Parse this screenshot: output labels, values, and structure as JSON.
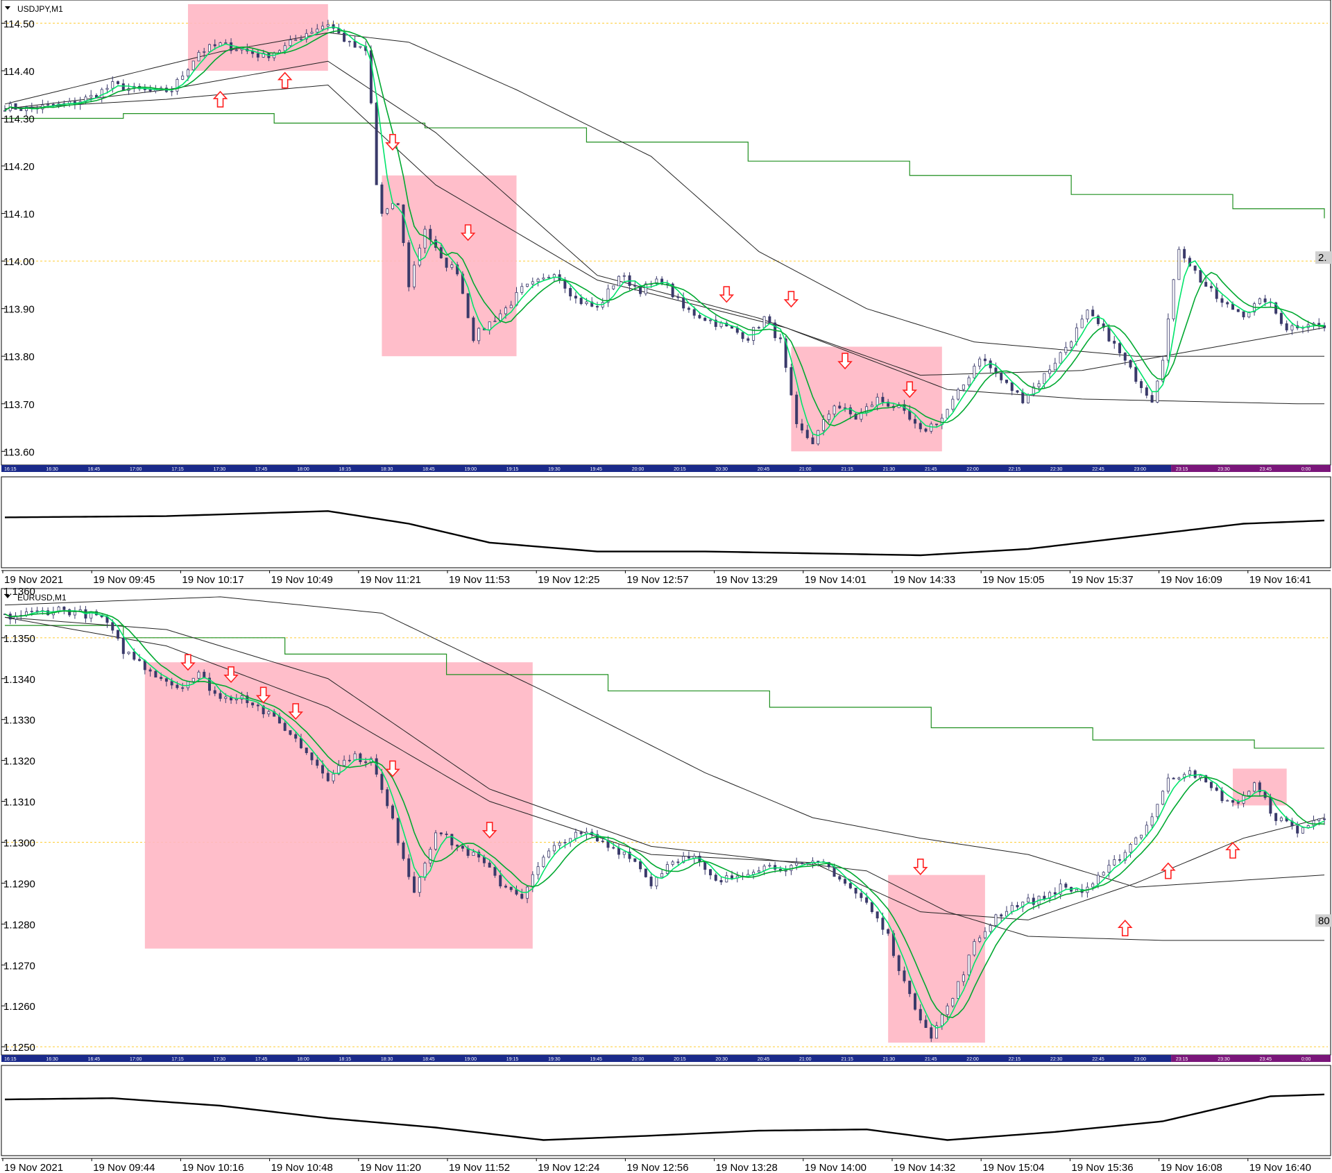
{
  "chart_data": [
    {
      "type": "candlestick",
      "symbol_label": "USDJPY,M1",
      "price_ticks": [
        "114.50",
        "114.40",
        "114.30",
        "114.20",
        "114.10",
        "114.00",
        "113.90",
        "113.80",
        "113.70",
        "113.60"
      ],
      "price_range": [
        113.58,
        114.54
      ],
      "right_badge": "2.",
      "inner_time_labels": [
        "16:15",
        "16:30",
        "16:45",
        "17:00",
        "17:15",
        "17:30",
        "17:45",
        "18:00",
        "18:15",
        "18:30",
        "18:45",
        "19:00",
        "19:15",
        "19:30",
        "19:45",
        "20:00",
        "20:15",
        "20:30",
        "20:45",
        "21:00",
        "21:15",
        "21:30",
        "21:45",
        "22:00",
        "22:15",
        "22:30",
        "22:45",
        "23:00",
        "23:15",
        "23:30",
        "23:45",
        "0:00"
      ],
      "time_axis": [
        "19 Nov 2021",
        "19 Nov 09:45",
        "19 Nov 10:17",
        "19 Nov 10:49",
        "19 Nov 11:21",
        "19 Nov 11:53",
        "19 Nov 12:25",
        "19 Nov 12:57",
        "19 Nov 13:29",
        "19 Nov 14:01",
        "19 Nov 14:33",
        "19 Nov 15:05",
        "19 Nov 15:37",
        "19 Nov 16:09",
        "19 Nov 16:41"
      ],
      "close_path": [
        [
          0,
          114.325
        ],
        [
          4,
          114.32
        ],
        [
          8,
          114.325
        ],
        [
          12,
          114.33
        ],
        [
          16,
          114.345
        ],
        [
          20,
          114.37
        ],
        [
          24,
          114.36
        ],
        [
          28,
          114.355
        ],
        [
          31,
          114.36
        ],
        [
          36,
          114.44
        ],
        [
          40,
          114.455
        ],
        [
          44,
          114.445
        ],
        [
          48,
          114.43
        ],
        [
          52,
          114.45
        ],
        [
          56,
          114.48
        ],
        [
          60,
          114.5
        ],
        [
          64,
          114.455
        ],
        [
          67,
          114.44
        ],
        [
          68,
          114.33
        ],
        [
          69,
          114.16
        ],
        [
          70,
          114.1
        ],
        [
          73,
          114.12
        ],
        [
          75,
          113.95
        ],
        [
          78,
          114.07
        ],
        [
          81,
          114.0
        ],
        [
          84,
          113.98
        ],
        [
          87,
          113.84
        ],
        [
          89,
          113.86
        ],
        [
          93,
          113.9
        ],
        [
          96,
          113.94
        ],
        [
          100,
          113.96
        ],
        [
          102,
          113.98
        ],
        [
          106,
          113.92
        ],
        [
          110,
          113.9
        ],
        [
          114,
          113.97
        ],
        [
          118,
          113.94
        ],
        [
          122,
          113.96
        ],
        [
          126,
          113.9
        ],
        [
          130,
          113.88
        ],
        [
          134,
          113.86
        ],
        [
          138,
          113.84
        ],
        [
          141,
          113.88
        ],
        [
          144,
          113.83
        ],
        [
          147,
          113.65
        ],
        [
          150,
          113.62
        ],
        [
          154,
          113.7
        ],
        [
          158,
          113.67
        ],
        [
          162,
          113.71
        ],
        [
          166,
          113.69
        ],
        [
          170,
          113.64
        ],
        [
          174,
          113.67
        ],
        [
          178,
          113.74
        ],
        [
          181,
          113.8
        ],
        [
          185,
          113.75
        ],
        [
          189,
          113.71
        ],
        [
          193,
          113.76
        ],
        [
          197,
          113.82
        ],
        [
          201,
          113.89
        ],
        [
          205,
          113.84
        ],
        [
          209,
          113.77
        ],
        [
          213,
          113.71
        ],
        [
          215,
          113.8
        ],
        [
          218,
          114.03
        ],
        [
          222,
          113.96
        ],
        [
          226,
          113.91
        ],
        [
          230,
          113.89
        ],
        [
          234,
          113.92
        ],
        [
          238,
          113.86
        ],
        [
          242,
          113.87
        ],
        [
          245,
          113.86
        ]
      ],
      "sma_path": [
        [
          0,
          114.33
        ],
        [
          20,
          114.36
        ],
        [
          40,
          114.41
        ],
        [
          60,
          114.47
        ],
        [
          70,
          114.3
        ],
        [
          80,
          114.05
        ],
        [
          90,
          113.92
        ],
        [
          100,
          113.95
        ],
        [
          120,
          113.93
        ],
        [
          140,
          113.86
        ],
        [
          150,
          113.72
        ],
        [
          165,
          113.68
        ],
        [
          178,
          113.72
        ],
        [
          200,
          113.83
        ],
        [
          215,
          113.78
        ],
        [
          230,
          113.9
        ],
        [
          245,
          113.88
        ]
      ],
      "ma_slow_1": [
        [
          0,
          114.32
        ],
        [
          30,
          114.36
        ],
        [
          60,
          114.42
        ],
        [
          80,
          114.27
        ],
        [
          110,
          113.97
        ],
        [
          140,
          113.88
        ],
        [
          170,
          113.76
        ],
        [
          200,
          113.77
        ],
        [
          245,
          113.86
        ]
      ],
      "ma_slow_2": [
        [
          0,
          114.32
        ],
        [
          30,
          114.34
        ],
        [
          60,
          114.37
        ],
        [
          80,
          114.16
        ],
        [
          110,
          113.96
        ],
        [
          145,
          113.86
        ],
        [
          175,
          113.73
        ],
        [
          200,
          113.71
        ],
        [
          240,
          113.7
        ]
      ],
      "ma_slow_3": [
        [
          0,
          114.33
        ],
        [
          40,
          114.44
        ],
        [
          60,
          114.48
        ],
        [
          75,
          114.46
        ],
        [
          95,
          114.36
        ],
        [
          120,
          114.22
        ],
        [
          140,
          114.02
        ],
        [
          160,
          113.9
        ],
        [
          180,
          113.83
        ],
        [
          210,
          113.8
        ],
        [
          245,
          113.8
        ]
      ],
      "step_levels": [
        [
          0,
          114.3
        ],
        [
          22,
          114.31
        ],
        [
          50,
          114.29
        ],
        [
          78,
          114.28
        ],
        [
          108,
          114.25
        ],
        [
          138,
          114.21
        ],
        [
          168,
          114.18
        ],
        [
          198,
          114.14
        ],
        [
          228,
          114.11
        ],
        [
          245,
          114.09
        ]
      ],
      "shade_boxes": [
        [
          34,
          60,
          114.54,
          114.4
        ],
        [
          70,
          95,
          114.18,
          113.8
        ],
        [
          146,
          174,
          113.82,
          113.6
        ]
      ],
      "arrows_up": [
        [
          40,
          114.34
        ],
        [
          52,
          114.38
        ]
      ],
      "arrows_down": [
        [
          72,
          114.25
        ],
        [
          86,
          114.06
        ],
        [
          134,
          113.93
        ],
        [
          146,
          113.92
        ],
        [
          156,
          113.79
        ],
        [
          168,
          113.73
        ]
      ],
      "ticks_label": [
        "time"
      ]
    },
    {
      "type": "candlestick",
      "symbol_label": "EURUSD,M1",
      "price_ticks": [
        "1.1350",
        "1.1340",
        "1.1330",
        "1.1320",
        "1.1310",
        "1.1300",
        "1.1290",
        "1.1280",
        "1.1270",
        "1.1260",
        "1.1250"
      ],
      "price_range": [
        1.1249,
        1.1361
      ],
      "top_cut_label": "1.1360",
      "right_badge": "80",
      "inner_time_labels": [
        "16:15",
        "16:30",
        "16:45",
        "17:00",
        "17:15",
        "17:30",
        "17:45",
        "18:00",
        "18:15",
        "18:30",
        "18:45",
        "19:00",
        "19:15",
        "19:30",
        "19:45",
        "20:00",
        "20:15",
        "20:30",
        "20:45",
        "21:00",
        "21:15",
        "21:30",
        "21:45",
        "22:00",
        "22:15",
        "22:30",
        "22:45",
        "23:00",
        "23:15",
        "23:30",
        "23:45",
        "0:00"
      ],
      "time_axis": [
        "19 Nov 2021",
        "19 Nov 09:44",
        "19 Nov 10:16",
        "19 Nov 10:48",
        "19 Nov 11:20",
        "19 Nov 11:52",
        "19 Nov 12:24",
        "19 Nov 12:56",
        "19 Nov 13:28",
        "19 Nov 14:00",
        "19 Nov 14:32",
        "19 Nov 15:04",
        "19 Nov 15:36",
        "19 Nov 16:08",
        "19 Nov 16:40"
      ],
      "close_path": [
        [
          0,
          1.1355
        ],
        [
          10,
          1.1357
        ],
        [
          18,
          1.1355
        ],
        [
          22,
          1.1347
        ],
        [
          27,
          1.1342
        ],
        [
          32,
          1.1338
        ],
        [
          36,
          1.1341
        ],
        [
          40,
          1.1335
        ],
        [
          44,
          1.1336
        ],
        [
          48,
          1.1332
        ],
        [
          52,
          1.1328
        ],
        [
          56,
          1.1322
        ],
        [
          60,
          1.1316
        ],
        [
          64,
          1.1321
        ],
        [
          68,
          1.132
        ],
        [
          72,
          1.1305
        ],
        [
          76,
          1.1288
        ],
        [
          80,
          1.1303
        ],
        [
          84,
          1.1299
        ],
        [
          88,
          1.1296
        ],
        [
          92,
          1.129
        ],
        [
          96,
          1.1287
        ],
        [
          100,
          1.1296
        ],
        [
          104,
          1.1301
        ],
        [
          108,
          1.1302
        ],
        [
          112,
          1.1299
        ],
        [
          116,
          1.1297
        ],
        [
          120,
          1.129
        ],
        [
          124,
          1.1296
        ],
        [
          128,
          1.1296
        ],
        [
          132,
          1.129
        ],
        [
          136,
          1.1292
        ],
        [
          140,
          1.1294
        ],
        [
          144,
          1.1294
        ],
        [
          148,
          1.1294
        ],
        [
          152,
          1.1295
        ],
        [
          156,
          1.129
        ],
        [
          160,
          1.1285
        ],
        [
          164,
          1.1277
        ],
        [
          168,
          1.1262
        ],
        [
          172,
          1.1253
        ],
        [
          176,
          1.1262
        ],
        [
          180,
          1.1275
        ],
        [
          184,
          1.1282
        ],
        [
          188,
          1.1285
        ],
        [
          192,
          1.1286
        ],
        [
          196,
          1.1289
        ],
        [
          200,
          1.1288
        ],
        [
          204,
          1.1292
        ],
        [
          208,
          1.1298
        ],
        [
          212,
          1.1304
        ],
        [
          216,
          1.1315
        ],
        [
          220,
          1.1318
        ],
        [
          224,
          1.1313
        ],
        [
          228,
          1.1309
        ],
        [
          232,
          1.1314
        ],
        [
          236,
          1.1306
        ],
        [
          240,
          1.1303
        ],
        [
          245,
          1.1306
        ]
      ],
      "sma_path": [
        [
          0,
          1.1355
        ],
        [
          18,
          1.1355
        ],
        [
          24,
          1.1345
        ],
        [
          40,
          1.1338
        ],
        [
          60,
          1.1319
        ],
        [
          72,
          1.1308
        ],
        [
          78,
          1.1296
        ],
        [
          90,
          1.1298
        ],
        [
          100,
          1.1294
        ],
        [
          110,
          1.1299
        ],
        [
          130,
          1.1293
        ],
        [
          150,
          1.1295
        ],
        [
          160,
          1.1288
        ],
        [
          172,
          1.1262
        ],
        [
          180,
          1.1268
        ],
        [
          196,
          1.1286
        ],
        [
          208,
          1.1293
        ],
        [
          220,
          1.1309
        ],
        [
          232,
          1.1312
        ],
        [
          245,
          1.1307
        ]
      ],
      "ma_slow_1": [
        [
          0,
          1.1355
        ],
        [
          30,
          1.1348
        ],
        [
          60,
          1.1333
        ],
        [
          90,
          1.131
        ],
        [
          120,
          1.1297
        ],
        [
          150,
          1.1295
        ],
        [
          170,
          1.1283
        ],
        [
          190,
          1.1281
        ],
        [
          210,
          1.129
        ],
        [
          230,
          1.1301
        ],
        [
          245,
          1.1306
        ]
      ],
      "ma_slow_2": [
        [
          0,
          1.1355
        ],
        [
          30,
          1.1352
        ],
        [
          60,
          1.134
        ],
        [
          90,
          1.1313
        ],
        [
          120,
          1.1299
        ],
        [
          160,
          1.1293
        ],
        [
          175,
          1.1283
        ],
        [
          190,
          1.1277
        ],
        [
          215,
          1.1276
        ],
        [
          245,
          1.1276
        ]
      ],
      "ma_slow_3": [
        [
          0,
          1.1358
        ],
        [
          40,
          1.136
        ],
        [
          70,
          1.1356
        ],
        [
          100,
          1.1337
        ],
        [
          130,
          1.1317
        ],
        [
          150,
          1.1306
        ],
        [
          170,
          1.1301
        ],
        [
          190,
          1.1297
        ],
        [
          210,
          1.1289
        ],
        [
          245,
          1.1292
        ]
      ],
      "step_levels": [
        [
          0,
          1.1353
        ],
        [
          22,
          1.135
        ],
        [
          52,
          1.1346
        ],
        [
          82,
          1.1341
        ],
        [
          112,
          1.1337
        ],
        [
          142,
          1.1333
        ],
        [
          172,
          1.1328
        ],
        [
          202,
          1.1325
        ],
        [
          232,
          1.1323
        ],
        [
          245,
          1.1323
        ]
      ],
      "shade_boxes": [
        [
          26,
          98,
          1.1344,
          1.1274
        ],
        [
          164,
          182,
          1.1292,
          1.1251
        ],
        [
          228,
          238,
          1.1318,
          1.1309
        ]
      ],
      "arrows_up": [
        [
          208,
          1.1279
        ],
        [
          216,
          1.1293
        ],
        [
          228,
          1.1298
        ]
      ],
      "arrows_down": [
        [
          34,
          1.1344
        ],
        [
          42,
          1.1341
        ],
        [
          48,
          1.1336
        ],
        [
          54,
          1.1332
        ],
        [
          72,
          1.1318
        ],
        [
          90,
          1.1303
        ],
        [
          170,
          1.1294
        ]
      ],
      "ticks_label": [
        "time"
      ]
    }
  ],
  "colors": {
    "candle": "#3a3a6a",
    "fast_ma": "#00e46a",
    "sma_green": "#00a830",
    "slow_ma": "#222222",
    "step_line": "#1f8f1f",
    "shade": "#ffb7c4",
    "arrow": "#ff2020",
    "dashed": "#ffcc33",
    "time_strip_a": "#1a2a8a",
    "time_strip_b": "#7a167a"
  },
  "oscillator_1": [
    [
      0,
      0.6
    ],
    [
      30,
      0.62
    ],
    [
      60,
      0.7
    ],
    [
      75,
      0.5
    ],
    [
      90,
      0.2
    ],
    [
      110,
      0.06
    ],
    [
      130,
      0.06
    ],
    [
      150,
      0.03
    ],
    [
      170,
      0.0
    ],
    [
      190,
      0.1
    ],
    [
      210,
      0.3
    ],
    [
      230,
      0.5
    ],
    [
      245,
      0.55
    ]
  ],
  "oscillator_2": [
    [
      0,
      0.7
    ],
    [
      20,
      0.72
    ],
    [
      40,
      0.6
    ],
    [
      60,
      0.4
    ],
    [
      80,
      0.25
    ],
    [
      100,
      0.05
    ],
    [
      120,
      0.12
    ],
    [
      140,
      0.2
    ],
    [
      160,
      0.22
    ],
    [
      175,
      0.05
    ],
    [
      195,
      0.18
    ],
    [
      215,
      0.35
    ],
    [
      235,
      0.75
    ],
    [
      245,
      0.78
    ]
  ]
}
